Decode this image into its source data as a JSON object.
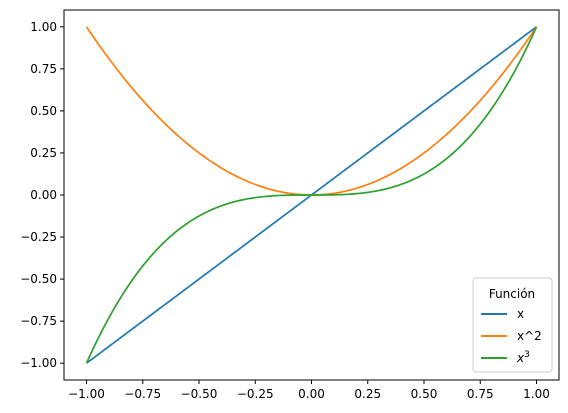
{
  "chart_data": {
    "type": "line",
    "title": "",
    "xlabel": "",
    "ylabel": "",
    "xlim": [
      -1.1,
      1.1
    ],
    "ylim": [
      -1.1,
      1.1
    ],
    "x_ticks": [
      -1.0,
      -0.75,
      -0.5,
      -0.25,
      0.0,
      0.25,
      0.5,
      0.75,
      1.0
    ],
    "x_tick_labels": [
      "−1.00",
      "−0.75",
      "−0.50",
      "−0.25",
      "0.00",
      "0.25",
      "0.50",
      "0.75",
      "1.00"
    ],
    "y_ticks": [
      -1.0,
      -0.75,
      -0.5,
      -0.25,
      0.0,
      0.25,
      0.5,
      0.75,
      1.0
    ],
    "y_tick_labels": [
      "−1.00",
      "−0.75",
      "−0.50",
      "−0.25",
      "0.00",
      "0.25",
      "0.50",
      "0.75",
      "1.00"
    ],
    "grid": false,
    "legend": {
      "title": "Función",
      "placement": "lower right"
    },
    "x": [
      -1.0,
      -0.9,
      -0.8,
      -0.7,
      -0.6,
      -0.5,
      -0.4,
      -0.3,
      -0.2,
      -0.1,
      0.0,
      0.1,
      0.2,
      0.3,
      0.4,
      0.5,
      0.6,
      0.7,
      0.8,
      0.9,
      1.0
    ],
    "series": [
      {
        "name": "x",
        "color": "#1f77b4",
        "values": [
          -1.0,
          -0.9,
          -0.8,
          -0.7,
          -0.6,
          -0.5,
          -0.4,
          -0.3,
          -0.2,
          -0.1,
          0.0,
          0.1,
          0.2,
          0.3,
          0.4,
          0.5,
          0.6,
          0.7,
          0.8,
          0.9,
          1.0
        ]
      },
      {
        "name": "x^2",
        "color": "#ff7f0e",
        "values": [
          1.0,
          0.81,
          0.64,
          0.49,
          0.36,
          0.25,
          0.16,
          0.09,
          0.04,
          0.01,
          0.0,
          0.01,
          0.04,
          0.09,
          0.16,
          0.25,
          0.36,
          0.49,
          0.64,
          0.81,
          1.0
        ]
      },
      {
        "name": "x3",
        "color": "#2ca02c",
        "values": [
          -1.0,
          -0.729,
          -0.512,
          -0.343,
          -0.216,
          -0.125,
          -0.064,
          -0.027,
          -0.008,
          -0.001,
          0.0,
          0.001,
          0.008,
          0.027,
          0.064,
          0.125,
          0.216,
          0.343,
          0.512,
          0.729,
          1.0
        ]
      }
    ]
  }
}
